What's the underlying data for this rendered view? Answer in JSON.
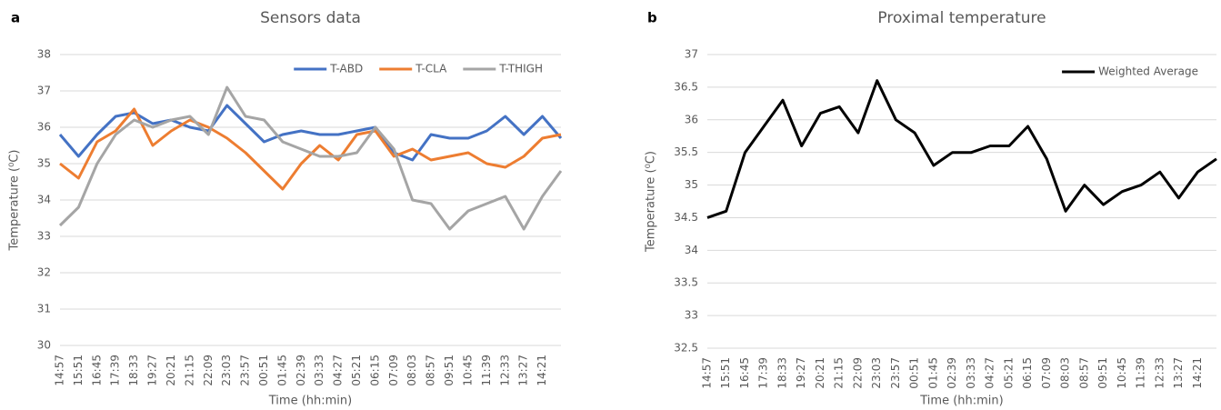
{
  "chart_data": [
    {
      "type": "line",
      "panel": "a",
      "title": "Sensors data",
      "ylabel": "Temperature (⁰C)",
      "xlabel": "Time (hh:min)",
      "categories": [
        "14:57",
        "15:51",
        "16:45",
        "17:39",
        "18:33",
        "19:27",
        "20:21",
        "21:15",
        "22:09",
        "23:03",
        "23:57",
        "00:51",
        "01:45",
        "02:39",
        "03:33",
        "04:27",
        "05:21",
        "06:15",
        "07:09",
        "08:03",
        "08:57",
        "09:51",
        "10:45",
        "11:39",
        "12:33",
        "13:27",
        "14:21",
        null
      ],
      "ylim": [
        30,
        38
      ],
      "yticks": [
        30,
        31,
        32,
        33,
        34,
        35,
        36,
        37,
        38
      ],
      "grid": true,
      "legend": "top-right",
      "series": [
        {
          "name": "T-ABD",
          "color": "#4472c4",
          "values": [
            35.8,
            35.2,
            35.8,
            36.3,
            36.4,
            36.1,
            36.2,
            36.0,
            35.9,
            36.6,
            36.1,
            35.6,
            35.8,
            35.9,
            35.8,
            35.8,
            35.9,
            36.0,
            35.3,
            35.1,
            35.8,
            35.7,
            35.7,
            35.9,
            36.3,
            35.8,
            36.3,
            35.7
          ]
        },
        {
          "name": "T-CLA",
          "color": "#ed7d31",
          "values": [
            35.0,
            34.6,
            35.6,
            35.9,
            36.5,
            35.5,
            35.9,
            36.2,
            36.0,
            35.7,
            35.3,
            34.8,
            34.3,
            35.0,
            35.5,
            35.1,
            35.8,
            35.9,
            35.2,
            35.4,
            35.1,
            35.2,
            35.3,
            35.0,
            34.9,
            35.2,
            35.7,
            35.8
          ]
        },
        {
          "name": "T-THIGH",
          "color": "#a5a5a5",
          "values": [
            33.3,
            33.8,
            35.0,
            35.8,
            36.2,
            36.0,
            36.2,
            36.3,
            35.8,
            37.1,
            36.3,
            36.2,
            35.6,
            35.4,
            35.2,
            35.2,
            35.3,
            36.0,
            35.4,
            34.0,
            33.9,
            33.2,
            33.7,
            33.9,
            34.1,
            33.2,
            34.1,
            34.8
          ]
        }
      ]
    },
    {
      "type": "line",
      "panel": "b",
      "title": "Proximal temperature",
      "ylabel": "Temperature (⁰C)",
      "xlabel": "Time (hh:min)",
      "categories": [
        "14:57",
        "15:51",
        "16:45",
        "17:39",
        "18:33",
        "19:27",
        "20:21",
        "21:15",
        "22:09",
        "23:03",
        "23:57",
        "00:51",
        "01:45",
        "02:39",
        "03:33",
        "04:27",
        "05:21",
        "06:15",
        "07:09",
        "08:03",
        "08:57",
        "09:51",
        "10:45",
        "11:39",
        "12:33",
        "13:27",
        "14:21",
        null
      ],
      "ylim": [
        32.5,
        37
      ],
      "yticks": [
        32.5,
        33,
        33.5,
        34,
        34.5,
        35,
        35.5,
        36,
        36.5,
        37
      ],
      "grid": true,
      "legend": "top-right",
      "series": [
        {
          "name": "Weighted Average",
          "color": "#000000",
          "values": [
            34.5,
            34.6,
            35.5,
            35.9,
            36.3,
            35.6,
            36.1,
            36.2,
            35.8,
            36.6,
            36.0,
            35.8,
            35.3,
            35.5,
            35.5,
            35.6,
            35.6,
            35.9,
            35.4,
            34.6,
            35.0,
            34.7,
            34.9,
            35.0,
            35.2,
            34.8,
            35.2,
            35.4
          ]
        }
      ]
    }
  ]
}
